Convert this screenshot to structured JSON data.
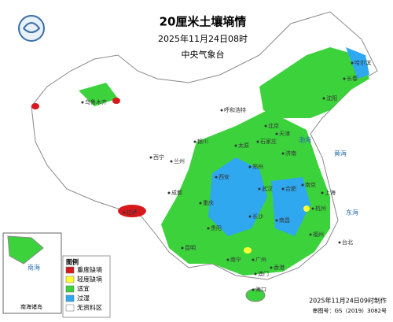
{
  "header": {
    "title": "20厘米土壤墒情",
    "time": "2025年11月24日08时",
    "agency": "中央气象台"
  },
  "legend": {
    "title": "图例",
    "items": [
      {
        "label": "重度缺墒",
        "color": "#d7191c"
      },
      {
        "label": "轻度缺墒",
        "color": "#ffff33"
      },
      {
        "label": "适宜",
        "color": "#3cd23c"
      },
      {
        "label": "过湿",
        "color": "#2fa8f0"
      },
      {
        "label": "无资料区",
        "color": "#ffffff"
      }
    ]
  },
  "inset": {
    "label": "南海诸岛"
  },
  "footer": {
    "made": "2025年11月24日09时制作",
    "approval": "审图号：GS（2019）3082号"
  },
  "cities": [
    "北京",
    "天津",
    "石家庄",
    "太原",
    "济南",
    "郑州",
    "西安",
    "兰州",
    "西宁",
    "银川",
    "呼和浩特",
    "沈阳",
    "长春",
    "哈尔滨",
    "乌鲁木齐",
    "拉萨",
    "成都",
    "重庆",
    "武汉",
    "南京",
    "上海",
    "杭州",
    "合肥",
    "长沙",
    "南昌",
    "福州",
    "台北",
    "贵阳",
    "昆明",
    "南宁",
    "广州",
    "香港",
    "澳门",
    "海口"
  ],
  "seas": [
    "渤海",
    "黄海",
    "东海",
    "南海"
  ]
}
